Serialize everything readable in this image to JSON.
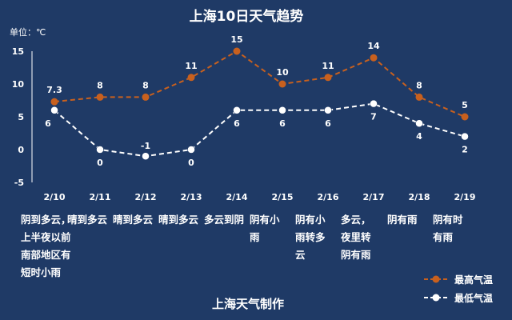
{
  "chart_data": {
    "type": "line",
    "title": "上海10日天气趋势",
    "unit_label": "单位：℃",
    "categories": [
      "2/10",
      "2/11",
      "2/12",
      "2/13",
      "2/14",
      "2/15",
      "2/16",
      "2/17",
      "2/18",
      "2/19"
    ],
    "ylim": [
      -5,
      15
    ],
    "yticks": [
      -5,
      0,
      5,
      10,
      15
    ],
    "grid": false,
    "legend_position": "bottom-right",
    "series": [
      {
        "name": "最高气温",
        "color": "#c8601e",
        "marker_fill": "#c8601e",
        "values": [
          7.3,
          8,
          8,
          11,
          15,
          10,
          11,
          14,
          8,
          5
        ],
        "labels": [
          "7.3",
          "8",
          "8",
          "11",
          "15",
          "10",
          "11",
          "14",
          "8",
          "5"
        ]
      },
      {
        "name": "最低气温",
        "color": "#ffffff",
        "marker_fill": "#ffffff",
        "values": [
          6,
          0,
          -1,
          0,
          6,
          6,
          6,
          7,
          4,
          2
        ],
        "labels": [
          "6",
          "0",
          "-1",
          "0",
          "6",
          "6",
          "6",
          "7",
          "4",
          "2"
        ]
      }
    ],
    "weather": [
      [
        "阴到多云，",
        "上半夜以前",
        "南部地区有",
        "短时小雨"
      ],
      [
        "晴到多云"
      ],
      [
        "晴到多云"
      ],
      [
        "晴到多云"
      ],
      [
        "多云到阴"
      ],
      [
        "阴有小",
        "雨"
      ],
      [
        "阴有小",
        "雨转多",
        "云"
      ],
      [
        "多云，",
        "夜里转",
        "阴有雨"
      ],
      [
        "阴有雨"
      ],
      [
        "阴有时",
        "有雨"
      ]
    ]
  },
  "footer": "上海天气制作"
}
